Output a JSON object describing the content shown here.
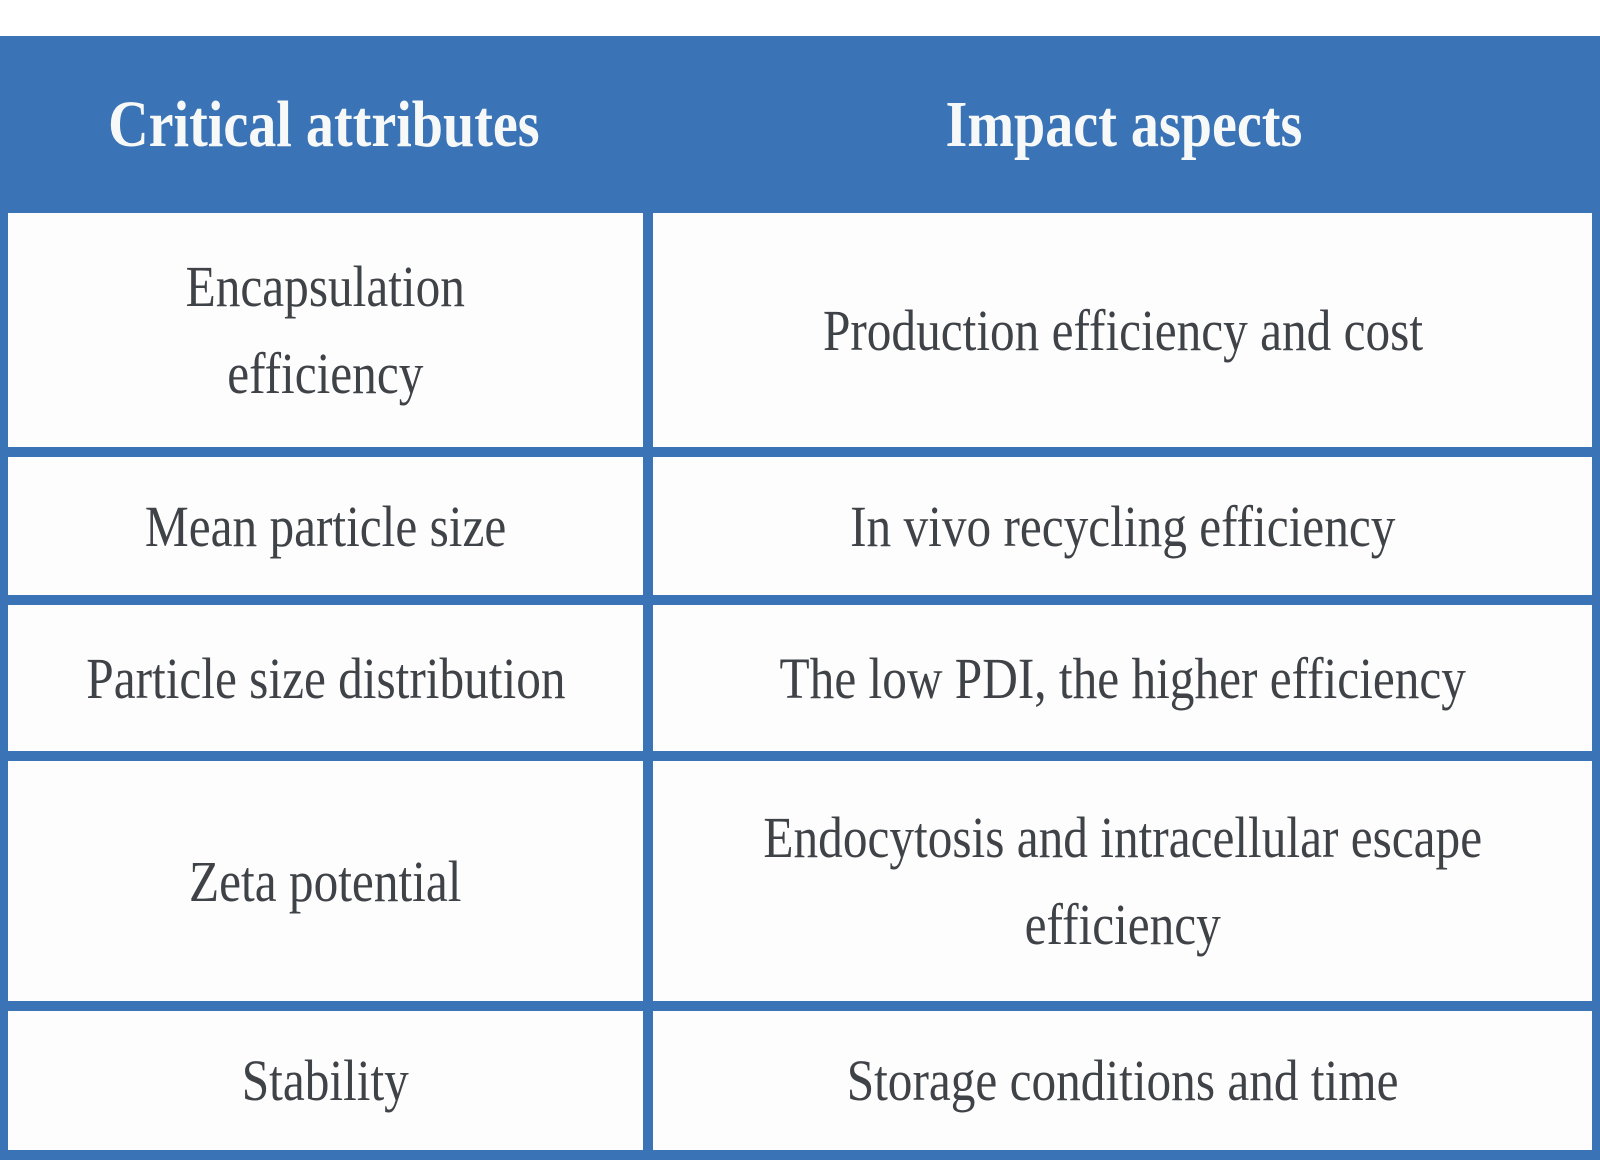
{
  "table": {
    "header": {
      "col1": "Critical attributes",
      "col2": "Impact aspects"
    },
    "rows": [
      {
        "attribute": "Encapsulation\nefficiency",
        "impact": "Production efficiency and cost"
      },
      {
        "attribute": "Mean particle size",
        "impact": "In vivo recycling efficiency"
      },
      {
        "attribute": "Particle size distribution",
        "impact": "The low PDI, the higher efficiency"
      },
      {
        "attribute": "Zeta potential",
        "impact": "Endocytosis and intracellular escape\nefficiency"
      },
      {
        "attribute": "Stability",
        "impact": "Storage conditions and time"
      }
    ]
  },
  "colors": {
    "accent_blue": "#3a73b6",
    "cell_background": "#fdfdfd",
    "body_text": "#3f4347",
    "header_text": "#f7f9f8",
    "page_background": "#ffffff"
  }
}
